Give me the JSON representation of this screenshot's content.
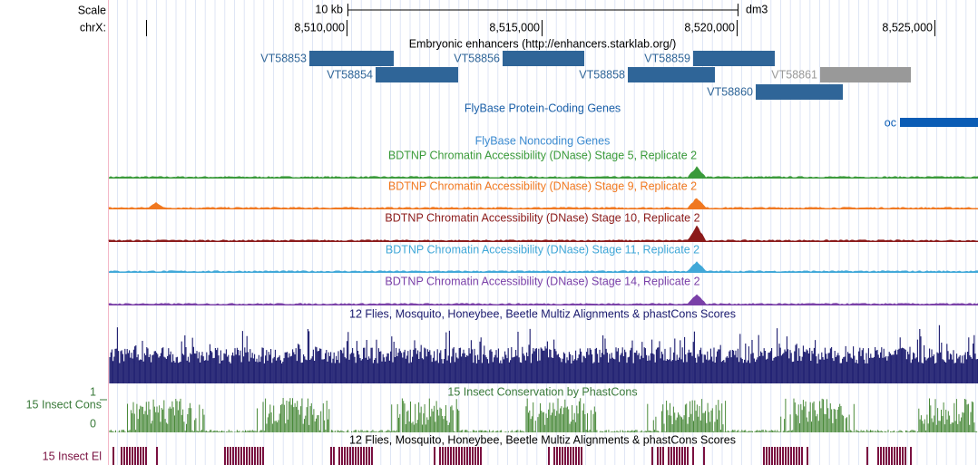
{
  "ruler": {
    "scale_label": "Scale",
    "chrom_label": "chrX:",
    "scale_bar": "10 kb",
    "assembly": "dm3",
    "positions": [
      "8,510,000",
      "8,515,000",
      "8,520,000",
      "8,525,000"
    ]
  },
  "enhancers": {
    "title": "Embryonic enhancers (http://enhancers.starklab.org/)",
    "items": [
      "VT58853",
      "VT58856",
      "VT58859",
      "VT58854",
      "VT58858",
      "VT58861",
      "VT58860"
    ]
  },
  "protein_genes": {
    "title": "FlyBase Protein-Coding Genes",
    "items": [
      "oc"
    ]
  },
  "noncoding_genes": {
    "title": "FlyBase Noncoding Genes"
  },
  "dnase_tracks": [
    "BDTNP Chromatin Accessibility (DNase) Stage 5, Replicate 2",
    "BDTNP Chromatin Accessibility (DNase) Stage 9, Replicate 2",
    "BDTNP Chromatin Accessibility (DNase) Stage 10, Replicate 2",
    "BDTNP Chromatin Accessibility (DNase) Stage 11, Replicate 2",
    "BDTNP Chromatin Accessibility (DNase) Stage 14, Replicate 2"
  ],
  "multiz": {
    "title": "12 Flies, Mosquito, Honeybee, Beetle Multiz Alignments & phastCons Scores"
  },
  "cons": {
    "title": "15 Insect Conservation by PhastCons",
    "side_label": "15 Insect Cons",
    "max_label": "1",
    "min_label": "0"
  },
  "multiz2": {
    "title": "12 Flies, Mosquito, Honeybee, Beetle Multiz Alignments & phastCons Scores"
  },
  "elements": {
    "side_label": "15 Insect El"
  }
}
